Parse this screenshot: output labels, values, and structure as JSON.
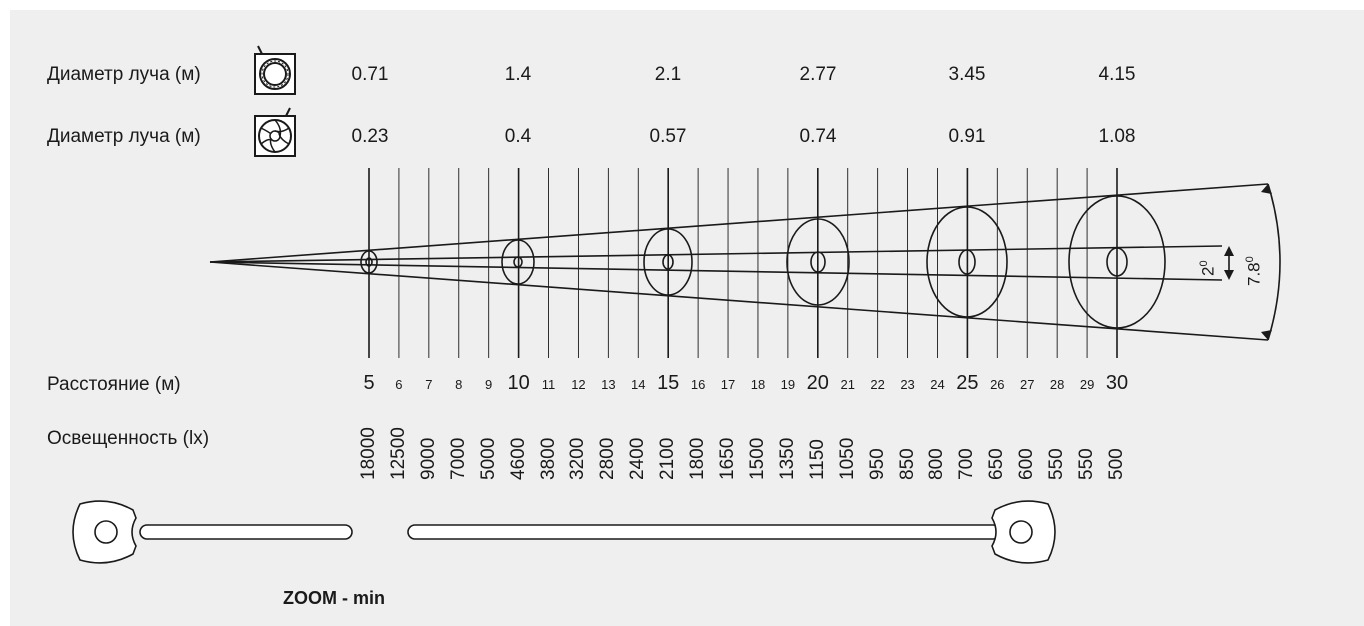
{
  "rows": [
    {
      "label": "Диаметр луча (м)",
      "icon": "gobo-ring-icon",
      "values": [
        "0.71",
        "1.4",
        "2.1",
        "2.77",
        "3.45",
        "4.15"
      ]
    },
    {
      "label": "Диаметр луча (м)",
      "icon": "iris-shutter-icon",
      "values": [
        "0.23",
        "0.4",
        "0.57",
        "0.74",
        "0.91",
        "1.08"
      ]
    }
  ],
  "angles": {
    "inner": "2",
    "outer": "7.8",
    "degree_mark": "0"
  },
  "distance": {
    "label": "Расстояние (м)",
    "values": [
      "5",
      "6",
      "7",
      "8",
      "9",
      "10",
      "11",
      "12",
      "13",
      "14",
      "15",
      "16",
      "17",
      "18",
      "19",
      "20",
      "21",
      "22",
      "23",
      "24",
      "25",
      "26",
      "27",
      "28",
      "29",
      "30"
    ]
  },
  "illuminance": {
    "label": "Освещенность (lx)",
    "values": [
      "18000",
      "12500",
      "9000",
      "7000",
      "5000",
      "4600",
      "3800",
      "3200",
      "2800",
      "2400",
      "2100",
      "1800",
      "1650",
      "1500",
      "1350",
      "1150",
      "1050",
      "950",
      "850",
      "800",
      "700",
      "650",
      "600",
      "550",
      "550",
      "500"
    ]
  },
  "zoom": {
    "label": "ZOOM  -  min"
  }
}
